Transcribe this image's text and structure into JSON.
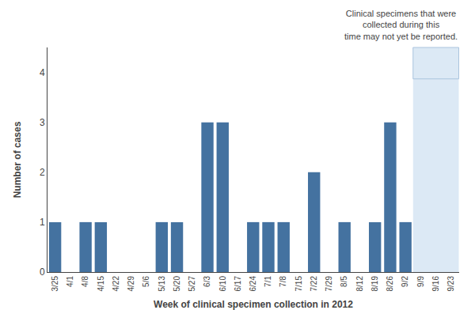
{
  "chart_data": {
    "type": "bar",
    "categories": [
      "3/25",
      "4/1",
      "4/8",
      "4/15",
      "4/22",
      "4/29",
      "5/6",
      "5/13",
      "5/20",
      "5/27",
      "6/3",
      "6/10",
      "6/17",
      "6/24",
      "7/1",
      "7/8",
      "7/15",
      "7/22",
      "7/29",
      "8/5",
      "8/12",
      "8/19",
      "8/26",
      "9/2",
      "9/9",
      "9/16",
      "9/23"
    ],
    "values": [
      1,
      0,
      1,
      1,
      0,
      0,
      0,
      1,
      1,
      0,
      3,
      3,
      0,
      1,
      1,
      1,
      0,
      2,
      0,
      1,
      0,
      1,
      3,
      1,
      0,
      0,
      0
    ],
    "color": "#4472a0",
    "xlabel": "Week of clinical specimen collection in 2012",
    "ylabel": "Number of cases",
    "ylim": [
      0,
      4.5
    ],
    "yticks": [
      0,
      1,
      2,
      3,
      4
    ],
    "grid": false,
    "annotation": {
      "text": "Clinical specimens that were\ncollected during this\ntime may not yet be reported.",
      "categories": [
        "9/9",
        "9/16",
        "9/23"
      ]
    }
  }
}
